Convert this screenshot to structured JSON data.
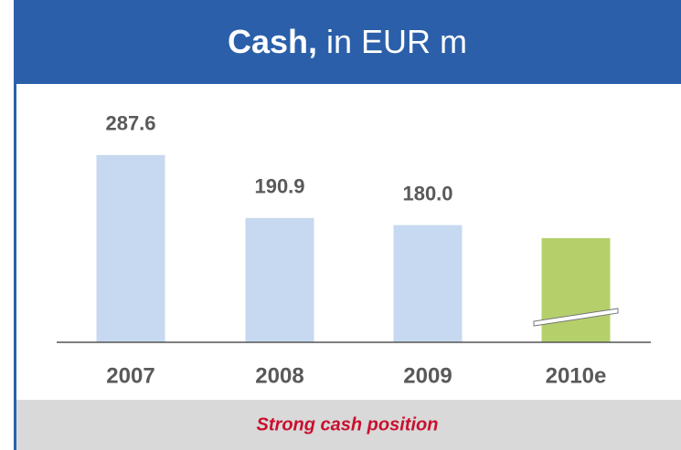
{
  "chart_data": {
    "type": "bar",
    "title": "Cash,",
    "title_unit": "in EUR m",
    "categories": [
      "2007",
      "2008",
      "2009",
      "2010e"
    ],
    "values": [
      287.6,
      190.9,
      180.0,
      160
    ],
    "value_labels": [
      "287.6",
      "190.9",
      "180.0",
      null
    ],
    "colors": [
      "#c6d9f0",
      "#c6d9f0",
      "#c6d9f0",
      "#b5d06b"
    ],
    "ylim": [
      0,
      300
    ],
    "footer": "Strong cash position"
  }
}
